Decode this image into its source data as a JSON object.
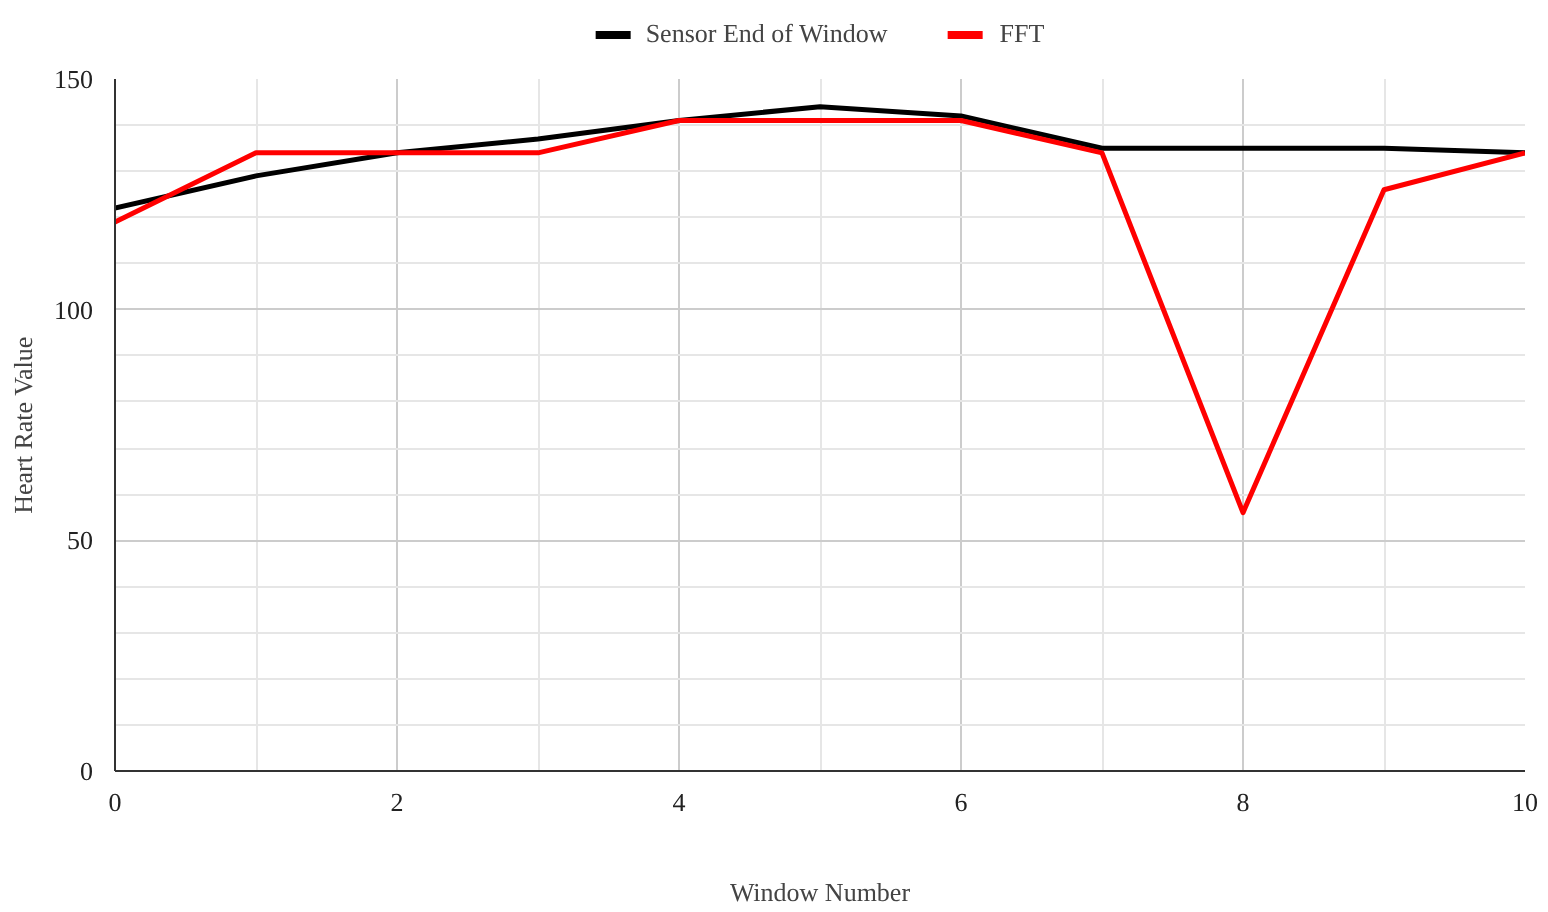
{
  "chart_data": {
    "type": "line",
    "xlabel": "Window Number",
    "ylabel": "Heart Rate Value",
    "x": [
      0,
      1,
      2,
      3,
      4,
      5,
      6,
      7,
      8,
      9,
      10
    ],
    "series": [
      {
        "name": "Sensor End of Window",
        "color": "#000000",
        "values": [
          122,
          129,
          134,
          137,
          141,
          144,
          142,
          135,
          135,
          135,
          134
        ]
      },
      {
        "name": "FFT",
        "color": "#ff0000",
        "values": [
          119,
          134,
          134,
          134,
          141,
          141,
          141,
          134,
          56,
          126,
          134
        ]
      }
    ],
    "xlim": [
      0,
      10
    ],
    "ylim": [
      0,
      150
    ],
    "xticks": [
      0,
      2,
      4,
      6,
      8,
      10
    ],
    "yticks": [
      0,
      50,
      100,
      150
    ],
    "grid": true,
    "legend": "top",
    "marker": "none",
    "line_style": "solid"
  }
}
